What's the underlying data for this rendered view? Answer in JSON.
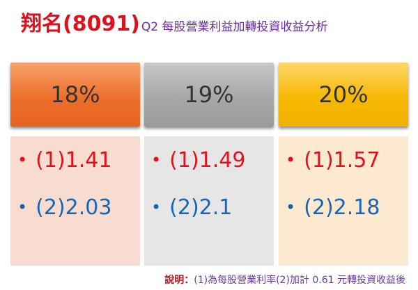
{
  "title": {
    "main": "翔名(8091)",
    "sub": "Q2 每股營業利益加轉投資收益分析"
  },
  "cards": [
    {
      "header": "18%",
      "line1": "(1)1.41",
      "line2": "(2)2.03"
    },
    {
      "header": "19%",
      "line1": "(1)1.49",
      "line2": "(2)2.1"
    },
    {
      "header": "20%",
      "line1": "(1)1.57",
      "line2": "(2)2.18"
    }
  ],
  "bullet": "•",
  "note": {
    "label": "說明：",
    "text": "(1)為每股營業利率(2)加計 0.61 元轉投資收益後"
  }
}
